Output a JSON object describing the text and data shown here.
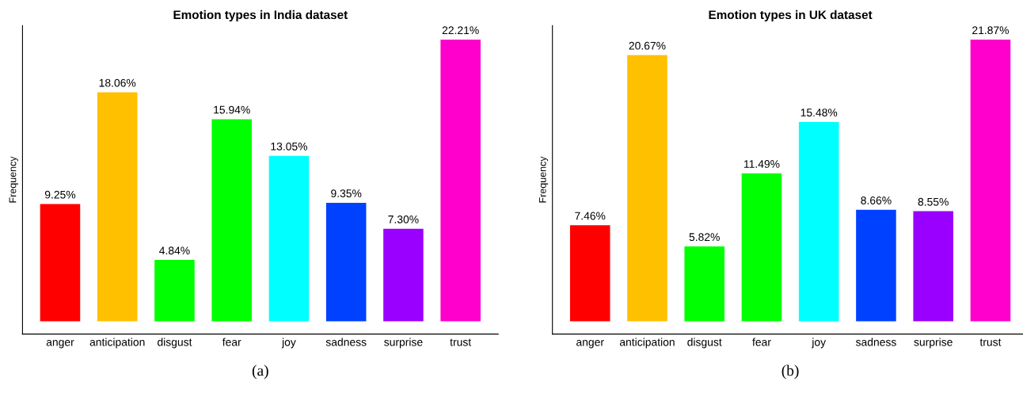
{
  "chart_data": [
    {
      "type": "bar",
      "title": "Emotion types in India dataset",
      "ylabel": "Frequency",
      "categories": [
        "anger",
        "anticipation",
        "disgust",
        "fear",
        "joy",
        "sadness",
        "surprise",
        "trust"
      ],
      "values": [
        9.25,
        18.06,
        4.84,
        15.94,
        13.05,
        9.35,
        7.3,
        22.21
      ],
      "value_labels": [
        "9.25%",
        "18.06%",
        "4.84%",
        "15.94%",
        "13.05%",
        "9.35%",
        "7.30%",
        "22.21%"
      ],
      "colors": [
        "#ff0000",
        "#ffc000",
        "#00ff00",
        "#00ff00",
        "#00ffff",
        "#0040ff",
        "#9900ff",
        "#ff00cc"
      ],
      "tick_labels": "x",
      "grid": false,
      "legend": false,
      "annotations": [
        "(a)"
      ]
    },
    {
      "type": "bar",
      "title": "Emotion types in UK dataset",
      "ylabel": "Frequency",
      "categories": [
        "anger",
        "anticipation",
        "disgust",
        "fear",
        "joy",
        "sadness",
        "surprise",
        "trust"
      ],
      "values": [
        7.46,
        20.67,
        5.82,
        11.49,
        15.48,
        8.66,
        8.55,
        21.87
      ],
      "value_labels": [
        "7.46%",
        "20.67%",
        "5.82%",
        "11.49%",
        "15.48%",
        "8.66%",
        "8.55%",
        "21.87%"
      ],
      "colors": [
        "#ff0000",
        "#ffc000",
        "#00ff00",
        "#00ff00",
        "#00ffff",
        "#0040ff",
        "#9900ff",
        "#ff00cc"
      ],
      "tick_labels": "x",
      "grid": false,
      "legend": false,
      "annotations": [
        "(b)"
      ]
    }
  ]
}
